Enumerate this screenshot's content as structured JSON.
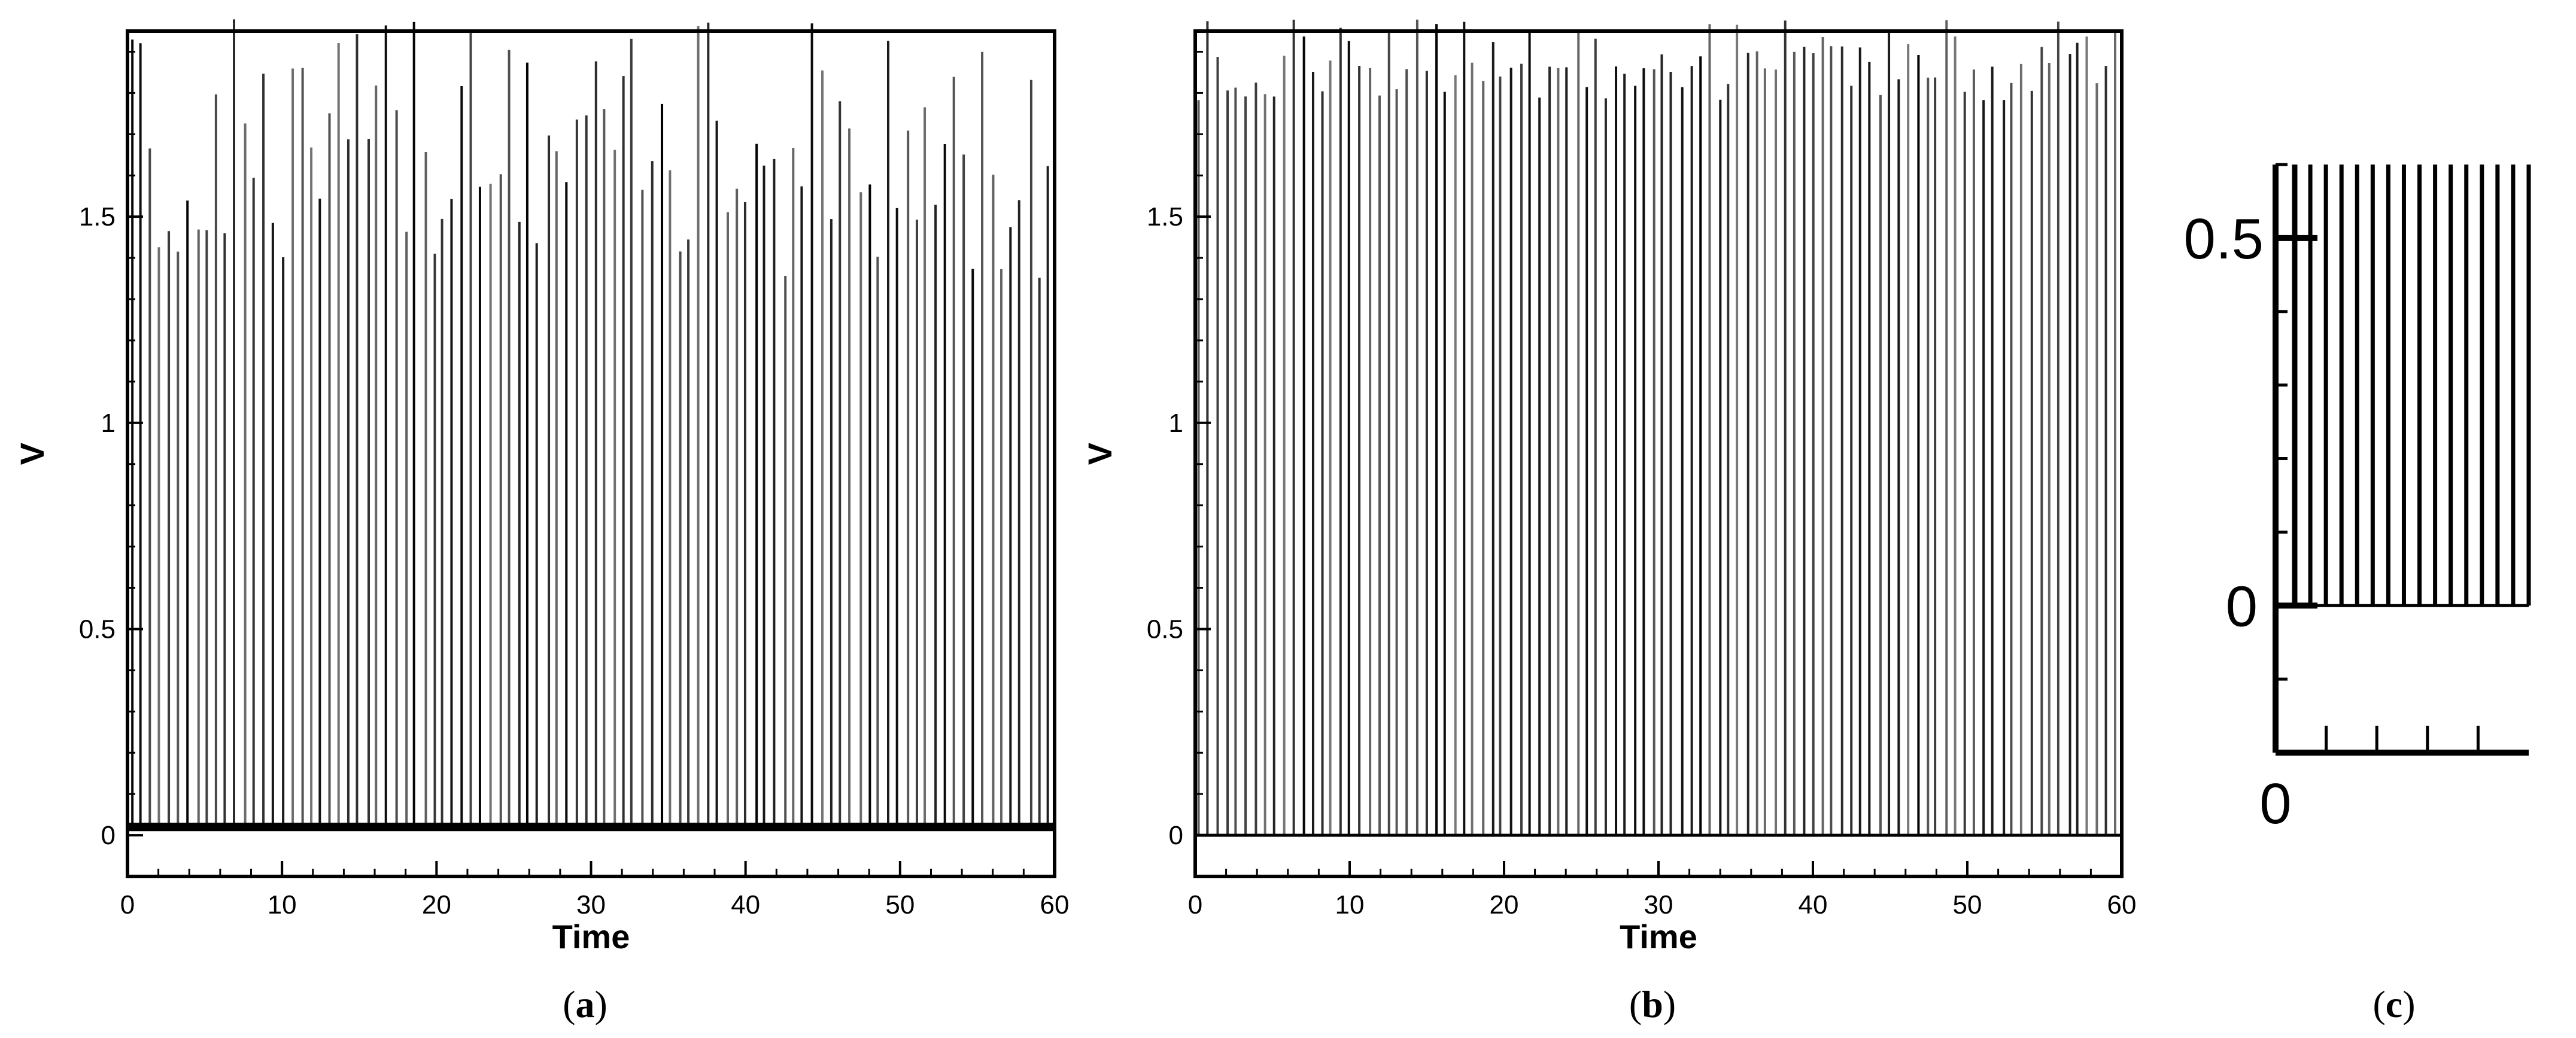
{
  "chart_data": [
    {
      "type": "line",
      "panel": "a",
      "caption_open": "(",
      "caption_letter": "a",
      "caption_close": ")",
      "xlabel": "Time",
      "ylabel": "V",
      "xlim": [
        0,
        60
      ],
      "ylim": [
        -0.1,
        1.95
      ],
      "xticks": [
        "0",
        "10",
        "20",
        "30",
        "40",
        "50",
        "60"
      ],
      "yticks": [
        "0",
        "0.5",
        "1",
        "1.5"
      ],
      "spike_count": 98,
      "baseline": 0.02,
      "peak_range": [
        1.35,
        1.98
      ],
      "series": [
        {
          "values_description_x": "spike train over Time 0–60",
          "color": "#000000"
        }
      ]
    },
    {
      "type": "line",
      "panel": "b",
      "caption_open": "(",
      "caption_letter": "b",
      "caption_close": ")",
      "xlabel": "Time",
      "ylabel": "V",
      "xlim": [
        0,
        60
      ],
      "ylim": [
        -0.1,
        1.95
      ],
      "xticks": [
        "0",
        "10",
        "20",
        "30",
        "40",
        "50",
        "60"
      ],
      "yticks": [
        "0",
        "0.5",
        "1",
        "1.5"
      ],
      "spike_count": 98,
      "baseline": 0.0,
      "peak_range": [
        1.78,
        1.98
      ],
      "series": [
        {
          "color": "#000000"
        }
      ]
    },
    {
      "type": "line",
      "panel": "c",
      "caption_open": "(",
      "caption_letter": "c",
      "caption_close": ")",
      "xlabel": "",
      "ylabel": "",
      "xticks": [
        "0"
      ],
      "yticks": [
        "0",
        "0.5"
      ],
      "ylim": [
        -0.2,
        0.6
      ],
      "spike_count": 16,
      "baseline": 0.0,
      "peak": 0.6
    }
  ]
}
